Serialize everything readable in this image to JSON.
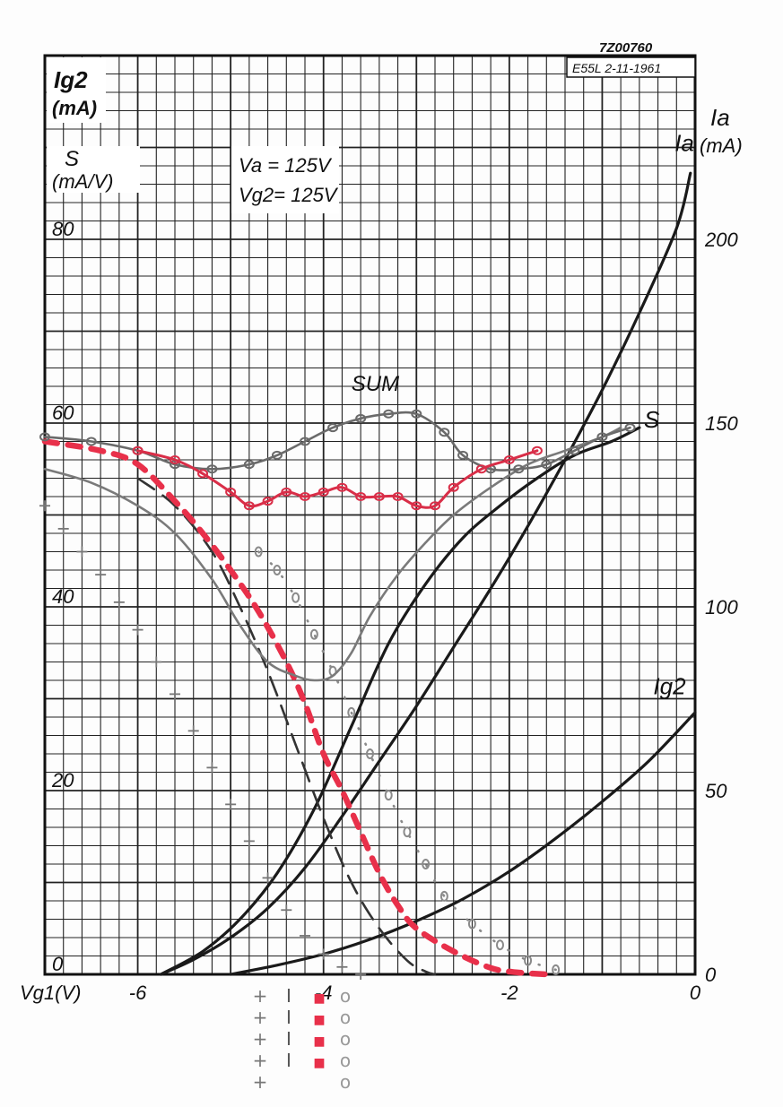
{
  "header": {
    "code": "7Z00760",
    "ref": "E55L  2-11-1961"
  },
  "conditions": {
    "va": "Va = 125V",
    "vg2": "Vg2= 125V"
  },
  "chart_data": {
    "type": "line",
    "xlabel": "Vg1(V)",
    "ylabel_left_top": "Ig2",
    "ylabel_left_top_unit": "(mA)",
    "ylabel_left": "S",
    "ylabel_left_unit": "(mA/V)",
    "ylabel_right": "Ia",
    "ylabel_right_unit": "(mA)",
    "x_ticks": [
      {
        "value": -6,
        "label": "-6"
      },
      {
        "value": -4,
        "label": "-4"
      },
      {
        "value": -2,
        "label": "-2"
      },
      {
        "value": 0,
        "label": "0"
      }
    ],
    "left_ticks": [
      {
        "value": 0,
        "label": "0"
      },
      {
        "value": 20,
        "label": "20"
      },
      {
        "value": 40,
        "label": "40"
      },
      {
        "value": 60,
        "label": "60"
      },
      {
        "value": 80,
        "label": "80"
      }
    ],
    "right_ticks": [
      {
        "value": 0,
        "label": "0"
      },
      {
        "value": 50,
        "label": "50"
      },
      {
        "value": 100,
        "label": "100"
      },
      {
        "value": 150,
        "label": "150"
      },
      {
        "value": 200,
        "label": "200"
      }
    ],
    "xlim": [
      -7,
      0
    ],
    "ylim_left": [
      0,
      100
    ],
    "ylim_right": [
      0,
      250
    ],
    "grid": true,
    "series": [
      {
        "name": "Ia",
        "axis": "right",
        "color": "#1a1a1a",
        "style": "solid",
        "width": 3.2,
        "x": [
          -5.75,
          -5.4,
          -5.0,
          -4.6,
          -4.2,
          -3.8,
          -3.4,
          -3.0,
          -2.6,
          -2.2,
          -1.8,
          -1.4,
          -1.0,
          -0.6,
          -0.2,
          -0.05
        ],
        "y": [
          0,
          4,
          10,
          18,
          29,
          43,
          58,
          73,
          89,
          105,
          122,
          140,
          159,
          180,
          203,
          218
        ]
      },
      {
        "name": "S",
        "axis": "left",
        "color": "#1a1a1a",
        "style": "solid",
        "width": 3.2,
        "x": [
          -5.75,
          -5.3,
          -4.9,
          -4.5,
          -4.1,
          -3.7,
          -3.3,
          -2.9,
          -2.5,
          -2.1,
          -1.7,
          -1.3,
          -0.9,
          -0.6
        ],
        "y": [
          0,
          2.5,
          6,
          11,
          18,
          27,
          36,
          42.5,
          47.5,
          51,
          54,
          56.5,
          58,
          59.5
        ]
      },
      {
        "name": "Ig2",
        "axis": "left",
        "color": "#1a1a1a",
        "style": "solid",
        "width": 3.2,
        "x": [
          -5.0,
          -4.5,
          -4.0,
          -3.5,
          -3.0,
          -2.5,
          -2.0,
          -1.5,
          -1.0,
          -0.5,
          0
        ],
        "y": [
          0,
          1.0,
          2.2,
          3.8,
          5.8,
          8.2,
          11.2,
          14.8,
          18.8,
          23.2,
          28.5
        ]
      },
      {
        "name": "",
        "axis": "left",
        "color": "#333333",
        "style": "dashed",
        "width": 2.6,
        "x": [
          -6.0,
          -5.6,
          -5.2,
          -4.9,
          -4.6,
          -4.3,
          -4.0,
          -3.7,
          -3.4,
          -3.1,
          -2.9,
          -2.8
        ],
        "y": [
          54,
          51,
          46,
          40,
          33,
          25,
          17,
          10,
          5,
          1.5,
          0.3,
          0
        ]
      },
      {
        "name": "",
        "axis": "left",
        "color": "#e8304a",
        "style": "dashed",
        "width": 6.5,
        "x": [
          -7.0,
          -6.4,
          -6.0,
          -5.6,
          -5.3,
          -5.0,
          -4.7,
          -4.4,
          -4.2,
          -4.0,
          -3.8,
          -3.6,
          -3.4,
          -3.2,
          -3.0,
          -2.6,
          -2.2,
          -1.9,
          -1.6
        ],
        "y": [
          58,
          57,
          55.5,
          51.5,
          48,
          44,
          39.5,
          34,
          29.5,
          24,
          20,
          15.5,
          11,
          7.5,
          5,
          2.5,
          0.7,
          0.2,
          0
        ]
      },
      {
        "name": "",
        "axis": "left",
        "color": "#8a8a8a",
        "style": "dotted",
        "width": 2.6,
        "x": [
          -4.7,
          -4.5,
          -4.3,
          -4.1,
          -3.9,
          -3.7,
          -3.5,
          -3.3,
          -3.1,
          -2.9,
          -2.7,
          -2.4,
          -2.1,
          -1.8,
          -1.5
        ],
        "y": [
          46,
          44,
          41,
          37,
          33,
          28.5,
          24,
          19.5,
          15.5,
          12,
          8.5,
          5.5,
          3.2,
          1.5,
          0.5
        ]
      },
      {
        "name": "",
        "axis": "left",
        "color": "#777777",
        "style": "crosses",
        "width": 1.8,
        "x": [
          -7.0,
          -6.8,
          -6.6,
          -6.4,
          -6.2,
          -6.0,
          -5.8,
          -5.6,
          -5.4,
          -5.2,
          -5.0,
          -4.8,
          -4.6,
          -4.4,
          -4.2,
          -4.0,
          -3.8,
          -3.6
        ],
        "y": [
          51,
          48.5,
          46,
          43.5,
          40.5,
          37.5,
          34,
          30.5,
          26.5,
          22.5,
          18.5,
          14.5,
          10.5,
          7,
          4.2,
          2.2,
          0.8,
          0
        ]
      },
      {
        "name": "",
        "axis": "left",
        "color": "#7a7a7a",
        "style": "solid",
        "width": 2.6,
        "x": [
          -7.0,
          -6.5,
          -6.0,
          -5.6,
          -5.2,
          -4.9,
          -4.6,
          -4.3,
          -4.1,
          -3.9,
          -3.7,
          -3.5,
          -3.2,
          -2.9,
          -2.6,
          -2.2,
          -1.8,
          -1.4,
          -1.0,
          -0.8
        ],
        "y": [
          55,
          53.5,
          51,
          48,
          43,
          38,
          34,
          32.5,
          32,
          32.5,
          35,
          39,
          43.5,
          47,
          50,
          53,
          55.5,
          57,
          58.5,
          59.5
        ]
      },
      {
        "name": "",
        "axis": "left",
        "color": "#6a6a6a",
        "style": "solid-dots",
        "width": 2.6,
        "x": [
          -7.0,
          -6.5,
          -6.0,
          -5.6,
          -5.2,
          -4.8,
          -4.5,
          -4.2,
          -3.9,
          -3.6,
          -3.3,
          -3.0,
          -2.7,
          -2.5,
          -2.2,
          -1.9,
          -1.6,
          -1.3,
          -1.0,
          -0.7
        ],
        "y": [
          58.5,
          58,
          57,
          55.5,
          55,
          55.5,
          56.5,
          58,
          59.5,
          60.5,
          61,
          61,
          59,
          56.5,
          55,
          55,
          55.5,
          57,
          58.5,
          59.5
        ]
      },
      {
        "name": "",
        "axis": "left",
        "color": "#d92e48",
        "style": "solid-dots",
        "width": 3,
        "x": [
          -6.0,
          -5.6,
          -5.3,
          -5.0,
          -4.8,
          -4.6,
          -4.4,
          -4.2,
          -4.0,
          -3.8,
          -3.6,
          -3.4,
          -3.2,
          -3.0,
          -2.8,
          -2.6,
          -2.3,
          -2.0,
          -1.7
        ],
        "y": [
          57,
          56,
          54.5,
          52.5,
          51,
          51.5,
          52.5,
          52,
          52.5,
          53,
          52,
          52,
          52,
          51,
          51,
          53,
          55,
          56,
          57
        ]
      }
    ],
    "annotations": [
      {
        "text": "SUM",
        "x": -3.7,
        "y": 63.5
      },
      {
        "text": "Ia",
        "x": -0.22,
        "y": 224,
        "axis": "right"
      },
      {
        "text": "S",
        "x": -0.55,
        "y": 59.5
      },
      {
        "text": "Ig2",
        "x": -0.45,
        "y": 30.5
      }
    ],
    "below_axis_marks": [
      {
        "symbol": "+",
        "count": 5,
        "color": "#777777"
      },
      {
        "symbol": "I",
        "count": 4,
        "color": "#555555"
      },
      {
        "symbol": "■",
        "count": 4,
        "color": "#e8304a"
      },
      {
        "symbol": "o",
        "count": 5,
        "color": "#999999"
      }
    ]
  }
}
